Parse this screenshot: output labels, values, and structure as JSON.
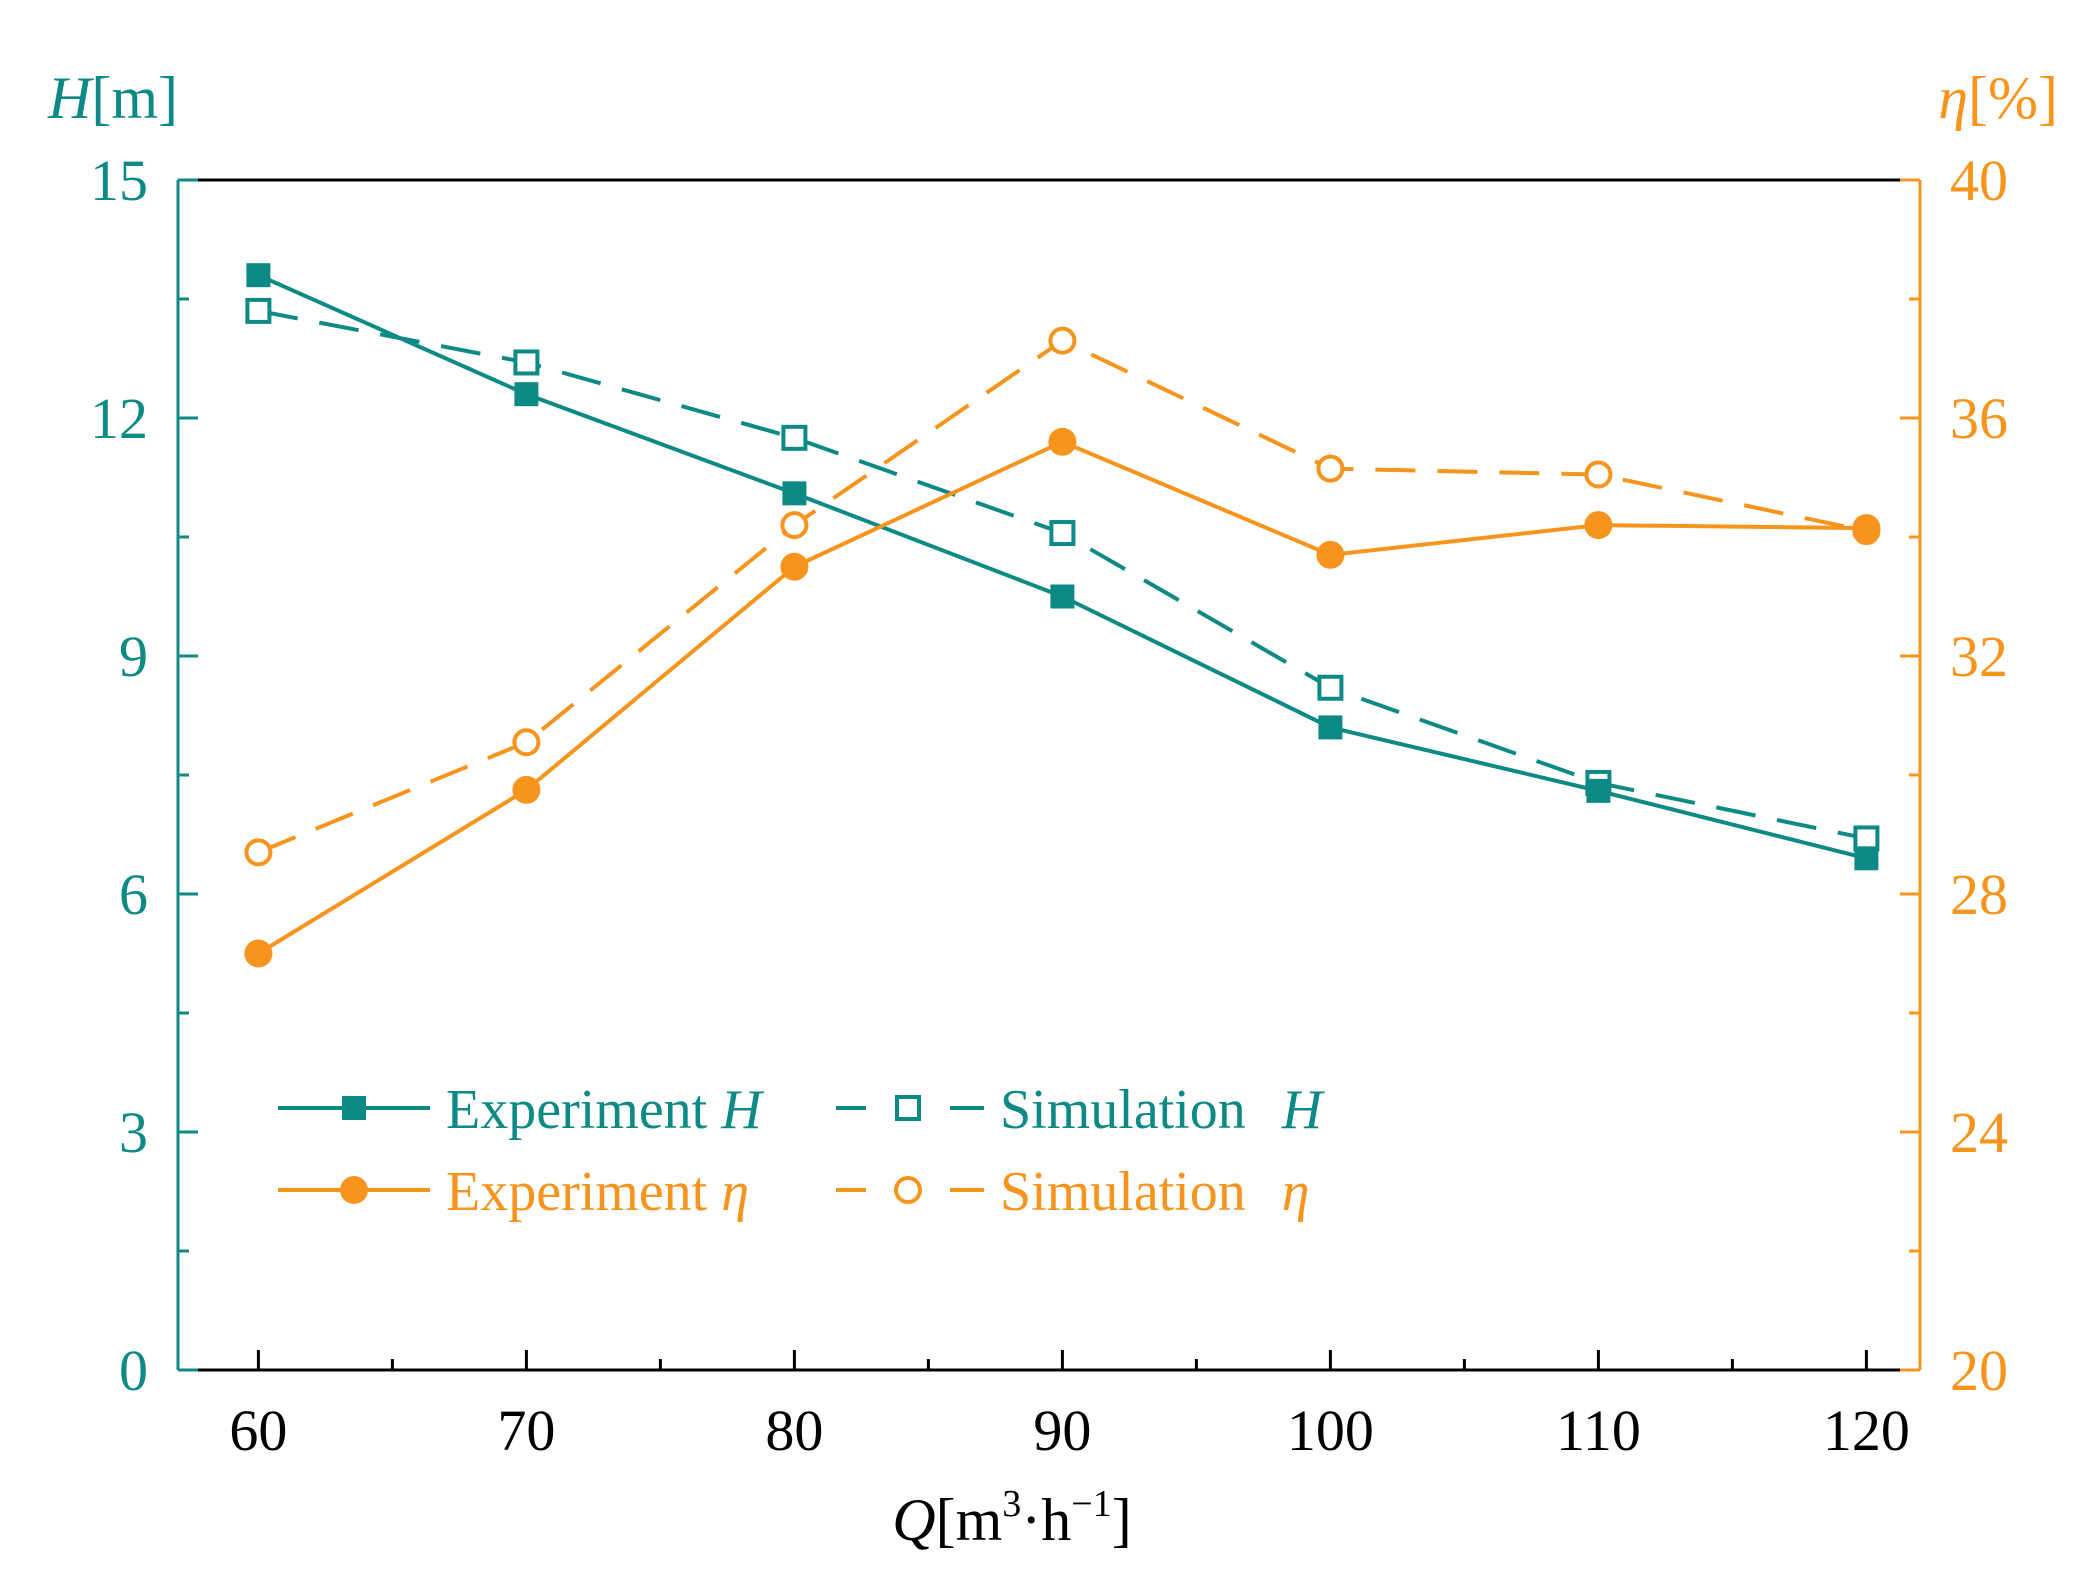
{
  "colors": {
    "teal": "#0e8a86",
    "orange": "#f7941d",
    "black": "#000000"
  },
  "chart_data": {
    "type": "line",
    "x": [
      60,
      70,
      80,
      90,
      100,
      110,
      120
    ],
    "xlim": [
      57,
      122
    ],
    "xticks": [
      60,
      70,
      80,
      90,
      100,
      110,
      120
    ],
    "xlabel": {
      "var": "Q",
      "unit_open": "[m",
      "unit_sup1": "3",
      "unit_mid": "·h",
      "unit_sup2": "−1",
      "unit_close": "]"
    },
    "y_left": {
      "label_var": "H",
      "label_unit": "[m]",
      "lim": [
        0,
        15
      ],
      "ticks": [
        0,
        3,
        6,
        9,
        12,
        15
      ]
    },
    "y_right": {
      "label_var": "η",
      "label_unit": "[%]",
      "lim": [
        20,
        40
      ],
      "ticks": [
        20,
        24,
        28,
        32,
        36,
        40
      ]
    },
    "series": [
      {
        "name": "Experiment H",
        "label_text": "Experiment ",
        "label_var": "H",
        "axis": "left",
        "color": "teal",
        "style": "solid",
        "marker": "filled-square",
        "values": [
          13.8,
          12.3,
          11.05,
          9.75,
          8.1,
          7.3,
          6.45
        ]
      },
      {
        "name": "Simulation H",
        "label_text": "Simulation ",
        "label_var": "H",
        "axis": "left",
        "color": "teal",
        "style": "dashed",
        "marker": "open-square",
        "values": [
          13.35,
          12.7,
          11.75,
          10.55,
          8.6,
          7.4,
          6.7
        ]
      },
      {
        "name": "Experiment η",
        "label_text": "Experiment ",
        "label_var": "η",
        "axis": "right",
        "color": "orange",
        "style": "solid",
        "marker": "filled-circle",
        "values": [
          27.0,
          29.75,
          33.5,
          35.6,
          33.7,
          34.2,
          34.15
        ]
      },
      {
        "name": "Simulation η",
        "label_text": "Simulation ",
        "label_var": "η",
        "axis": "right",
        "color": "orange",
        "style": "dashed",
        "marker": "open-circle",
        "values": [
          28.7,
          30.55,
          34.2,
          37.3,
          35.15,
          35.05,
          34.1
        ]
      }
    ],
    "legend_position": "lower-left"
  }
}
